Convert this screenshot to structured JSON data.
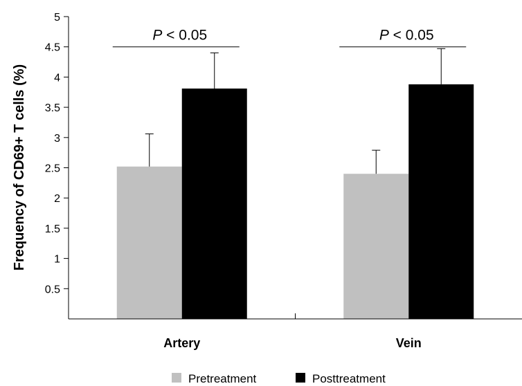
{
  "chart_data": {
    "type": "bar",
    "categories": [
      "Artery",
      "Vein"
    ],
    "series": [
      {
        "name": "Pretreatment",
        "values": [
          2.52,
          2.4
        ],
        "errors": [
          0.54,
          0.39
        ],
        "color": "#c0c0c0"
      },
      {
        "name": "Posttreatment",
        "values": [
          3.81,
          3.88
        ],
        "errors": [
          0.59,
          0.59
        ],
        "color": "#000000"
      }
    ],
    "ylabel": "Frequency of CD69+ T cells (%)",
    "xlabel": "",
    "ylim": [
      0,
      5
    ],
    "yticks": [
      "0.5",
      "1",
      "1.5",
      "2",
      "2.5",
      "3",
      "3.5",
      "4",
      "4.5",
      "5"
    ],
    "annotations": [
      {
        "category": "Artery",
        "text_italic": "P",
        "text_rest": " < 0.05",
        "y": 4.5
      },
      {
        "category": "Vein",
        "text_italic": "P",
        "text_rest": " < 0.05",
        "y": 4.5
      }
    ],
    "legend_position": "bottom"
  }
}
